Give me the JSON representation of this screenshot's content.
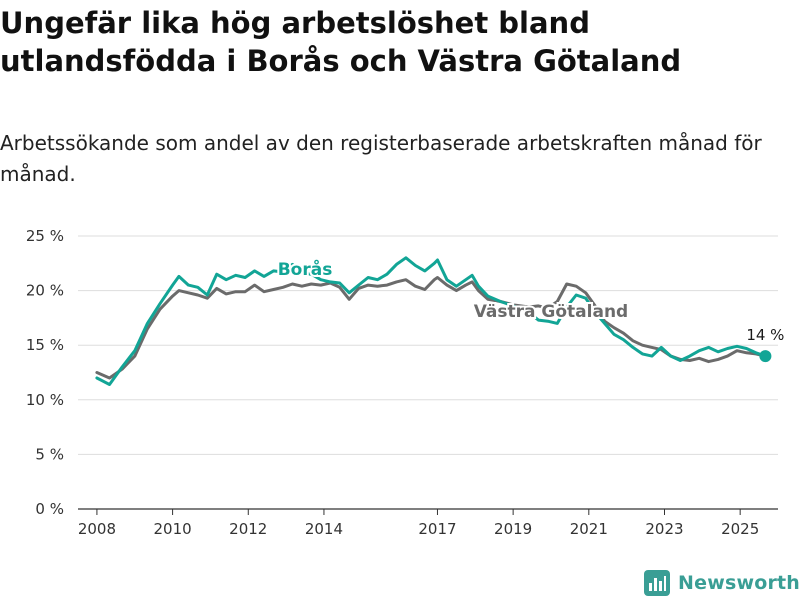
{
  "title": "Ungefär lika hög arbetslöshet bland utlandsfödda i Borås och Västra Götaland",
  "subtitle": "Arbetssökande som andel av den registerbaserade arbetskraften månad för månad.",
  "brand": "Newsworthy",
  "colors": {
    "boras": "#12a596",
    "vg": "#6b6b6b",
    "grid": "#dddddd",
    "axis": "#333333",
    "text": "#1a1a1a"
  },
  "chart_data": {
    "type": "line",
    "title": "",
    "xlabel": "",
    "ylabel": "",
    "ylim": [
      0,
      25
    ],
    "xlim": [
      "2007-07",
      "2026-01"
    ],
    "grid": true,
    "y_ticks": [
      0,
      5,
      10,
      15,
      20,
      25
    ],
    "y_tick_labels": [
      "0 %",
      "5 %",
      "10 %",
      "15 %",
      "20 %",
      "25 %"
    ],
    "x_ticks": [
      "2008",
      "2010",
      "2012",
      "2014",
      "2017",
      "2019",
      "2021",
      "2023",
      "2025"
    ],
    "end_label": "14 %",
    "series": [
      {
        "name": "Borås",
        "color_key": "boras",
        "points": [
          [
            "2008-01",
            12.0
          ],
          [
            "2008-05",
            11.4
          ],
          [
            "2008-09",
            13.0
          ],
          [
            "2009-01",
            14.5
          ],
          [
            "2009-05",
            17.0
          ],
          [
            "2009-09",
            18.8
          ],
          [
            "2010-01",
            20.5
          ],
          [
            "2010-03",
            21.3
          ],
          [
            "2010-06",
            20.5
          ],
          [
            "2010-09",
            20.3
          ],
          [
            "2010-12",
            19.6
          ],
          [
            "2011-03",
            21.5
          ],
          [
            "2011-06",
            21.0
          ],
          [
            "2011-09",
            21.4
          ],
          [
            "2011-12",
            21.2
          ],
          [
            "2012-03",
            21.8
          ],
          [
            "2012-06",
            21.3
          ],
          [
            "2012-09",
            21.8
          ],
          [
            "2012-12",
            21.7
          ],
          [
            "2013-03",
            22.4
          ],
          [
            "2013-06",
            21.6
          ],
          [
            "2013-09",
            21.5
          ],
          [
            "2013-12",
            21.0
          ],
          [
            "2014-03",
            20.8
          ],
          [
            "2014-06",
            20.7
          ],
          [
            "2014-09",
            19.8
          ],
          [
            "2014-12",
            20.5
          ],
          [
            "2015-03",
            21.2
          ],
          [
            "2015-06",
            21.0
          ],
          [
            "2015-09",
            21.5
          ],
          [
            "2015-12",
            22.4
          ],
          [
            "2016-03",
            23.0
          ],
          [
            "2016-06",
            22.3
          ],
          [
            "2016-09",
            21.8
          ],
          [
            "2016-12",
            22.5
          ],
          [
            "2017-01",
            22.8
          ],
          [
            "2017-04",
            21.0
          ],
          [
            "2017-07",
            20.4
          ],
          [
            "2017-10",
            21.0
          ],
          [
            "2017-12",
            21.4
          ],
          [
            "2018-02",
            20.4
          ],
          [
            "2018-05",
            19.5
          ],
          [
            "2018-09",
            19.0
          ],
          [
            "2019-01",
            18.6
          ],
          [
            "2019-06",
            18.0
          ],
          [
            "2019-09",
            17.3
          ],
          [
            "2019-12",
            17.2
          ],
          [
            "2020-03",
            17.0
          ],
          [
            "2020-06",
            18.5
          ],
          [
            "2020-09",
            19.6
          ],
          [
            "2020-12",
            19.3
          ],
          [
            "2021-03",
            18.0
          ],
          [
            "2021-06",
            17.0
          ],
          [
            "2021-09",
            16.0
          ],
          [
            "2021-12",
            15.5
          ],
          [
            "2022-03",
            14.8
          ],
          [
            "2022-06",
            14.2
          ],
          [
            "2022-09",
            14.0
          ],
          [
            "2022-12",
            14.8
          ],
          [
            "2023-03",
            14.0
          ],
          [
            "2023-06",
            13.6
          ],
          [
            "2023-09",
            14.0
          ],
          [
            "2023-12",
            14.5
          ],
          [
            "2024-03",
            14.8
          ],
          [
            "2024-06",
            14.4
          ],
          [
            "2024-09",
            14.7
          ],
          [
            "2024-12",
            14.9
          ],
          [
            "2025-03",
            14.7
          ],
          [
            "2025-06",
            14.3
          ],
          [
            "2025-09",
            14.0
          ]
        ]
      },
      {
        "name": "Västra Götaland",
        "color_key": "vg",
        "points": [
          [
            "2008-01",
            12.5
          ],
          [
            "2008-05",
            12.0
          ],
          [
            "2008-09",
            12.8
          ],
          [
            "2009-01",
            14.0
          ],
          [
            "2009-05",
            16.5
          ],
          [
            "2009-09",
            18.3
          ],
          [
            "2010-01",
            19.5
          ],
          [
            "2010-03",
            20.0
          ],
          [
            "2010-06",
            19.8
          ],
          [
            "2010-09",
            19.6
          ],
          [
            "2010-12",
            19.3
          ],
          [
            "2011-03",
            20.2
          ],
          [
            "2011-06",
            19.7
          ],
          [
            "2011-09",
            19.9
          ],
          [
            "2011-12",
            19.9
          ],
          [
            "2012-03",
            20.5
          ],
          [
            "2012-06",
            19.9
          ],
          [
            "2012-09",
            20.1
          ],
          [
            "2012-12",
            20.3
          ],
          [
            "2013-03",
            20.6
          ],
          [
            "2013-06",
            20.4
          ],
          [
            "2013-09",
            20.6
          ],
          [
            "2013-12",
            20.5
          ],
          [
            "2014-03",
            20.7
          ],
          [
            "2014-06",
            20.3
          ],
          [
            "2014-09",
            19.2
          ],
          [
            "2014-12",
            20.2
          ],
          [
            "2015-03",
            20.5
          ],
          [
            "2015-06",
            20.4
          ],
          [
            "2015-09",
            20.5
          ],
          [
            "2015-12",
            20.8
          ],
          [
            "2016-03",
            21.0
          ],
          [
            "2016-06",
            20.4
          ],
          [
            "2016-09",
            20.1
          ],
          [
            "2016-12",
            21.0
          ],
          [
            "2017-01",
            21.2
          ],
          [
            "2017-04",
            20.5
          ],
          [
            "2017-07",
            20.0
          ],
          [
            "2017-10",
            20.5
          ],
          [
            "2017-12",
            20.8
          ],
          [
            "2018-02",
            20.0
          ],
          [
            "2018-05",
            19.2
          ],
          [
            "2018-09",
            19.0
          ],
          [
            "2019-01",
            18.7
          ],
          [
            "2019-06",
            18.5
          ],
          [
            "2019-09",
            18.6
          ],
          [
            "2019-12",
            18.4
          ],
          [
            "2020-03",
            19.0
          ],
          [
            "2020-06",
            20.6
          ],
          [
            "2020-09",
            20.4
          ],
          [
            "2020-12",
            19.8
          ],
          [
            "2021-03",
            18.6
          ],
          [
            "2021-06",
            17.2
          ],
          [
            "2021-09",
            16.6
          ],
          [
            "2021-12",
            16.1
          ],
          [
            "2022-03",
            15.4
          ],
          [
            "2022-06",
            15.0
          ],
          [
            "2022-09",
            14.8
          ],
          [
            "2022-12",
            14.6
          ],
          [
            "2023-03",
            14.0
          ],
          [
            "2023-06",
            13.7
          ],
          [
            "2023-09",
            13.6
          ],
          [
            "2023-12",
            13.8
          ],
          [
            "2024-03",
            13.5
          ],
          [
            "2024-06",
            13.7
          ],
          [
            "2024-09",
            14.0
          ],
          [
            "2024-12",
            14.5
          ],
          [
            "2025-03",
            14.3
          ],
          [
            "2025-06",
            14.2
          ],
          [
            "2025-09",
            14.0
          ]
        ]
      }
    ]
  }
}
